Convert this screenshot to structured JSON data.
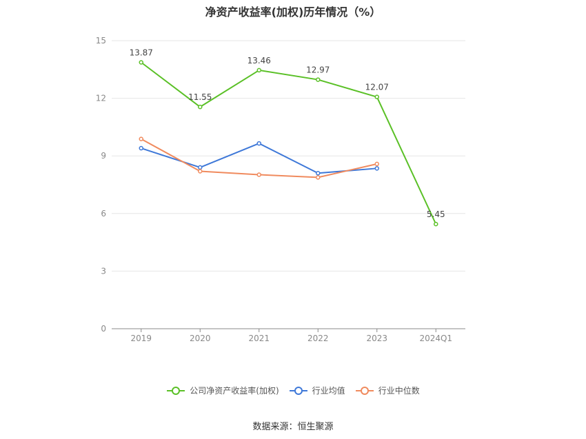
{
  "chart_data": {
    "type": "line",
    "title": "净资产收益率(加权)历年情况（%）",
    "categories": [
      "2019",
      "2020",
      "2021",
      "2022",
      "2023",
      "2024Q1"
    ],
    "ylim": [
      0,
      15
    ],
    "yticks": [
      0,
      3,
      6,
      9,
      12,
      15
    ],
    "grid": true,
    "legend_position": "bottom",
    "series": [
      {
        "name": "公司净资产收益率(加权)",
        "color": "#5ac026",
        "values": [
          13.87,
          11.55,
          13.46,
          12.97,
          12.07,
          5.45
        ],
        "show_labels": true
      },
      {
        "name": "行业均值",
        "color": "#3e78d8",
        "values": [
          9.4,
          8.4,
          9.65,
          8.1,
          8.35,
          null
        ],
        "show_labels": false
      },
      {
        "name": "行业中位数",
        "color": "#f08a5d",
        "values": [
          9.88,
          8.2,
          8.02,
          7.88,
          8.58,
          null
        ],
        "show_labels": false
      }
    ],
    "source": "数据来源：恒生聚源"
  }
}
